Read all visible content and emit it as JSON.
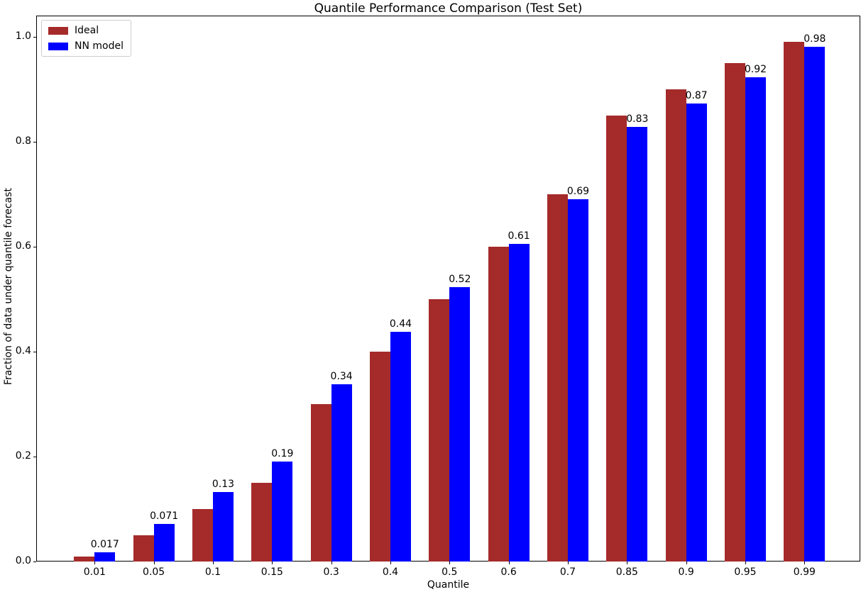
{
  "figure": {
    "background": "#ffffff",
    "text_color": "#000000",
    "axis_color": "#000000"
  },
  "chart_data": {
    "type": "bar",
    "title": "Quantile Performance Comparison (Test Set)",
    "xlabel": "Quantile",
    "ylabel": "Fraction of data under quantile forecast",
    "categories": [
      "0.01",
      "0.05",
      "0.1",
      "0.15",
      "0.3",
      "0.4",
      "0.5",
      "0.6",
      "0.7",
      "0.85",
      "0.9",
      "0.95",
      "0.99"
    ],
    "series": [
      {
        "name": "Ideal",
        "color": "#A52A2A",
        "values": [
          0.01,
          0.05,
          0.1,
          0.15,
          0.3,
          0.4,
          0.5,
          0.6,
          0.7,
          0.85,
          0.9,
          0.95,
          0.99
        ]
      },
      {
        "name": "NN model",
        "color": "#0000FF",
        "values": [
          0.017,
          0.071,
          0.133,
          0.19,
          0.337,
          0.437,
          0.523,
          0.605,
          0.69,
          0.828,
          0.873,
          0.922,
          0.98
        ]
      }
    ],
    "bar_value_labels": [
      "0.017",
      "0.071",
      "0.13",
      "0.19",
      "0.34",
      "0.44",
      "0.52",
      "0.61",
      "0.69",
      "0.83",
      "0.87",
      "0.92",
      "0.98"
    ],
    "yticks": [
      "0.0",
      "0.2",
      "0.4",
      "0.6",
      "0.8",
      "1.0"
    ],
    "ylim": [
      0,
      1.04
    ],
    "grid": false,
    "legend_position": "upper left",
    "legend": {
      "entries": [
        {
          "label": "Ideal",
          "color": "#A52A2A"
        },
        {
          "label": "NN model",
          "color": "#0000FF"
        }
      ]
    }
  }
}
